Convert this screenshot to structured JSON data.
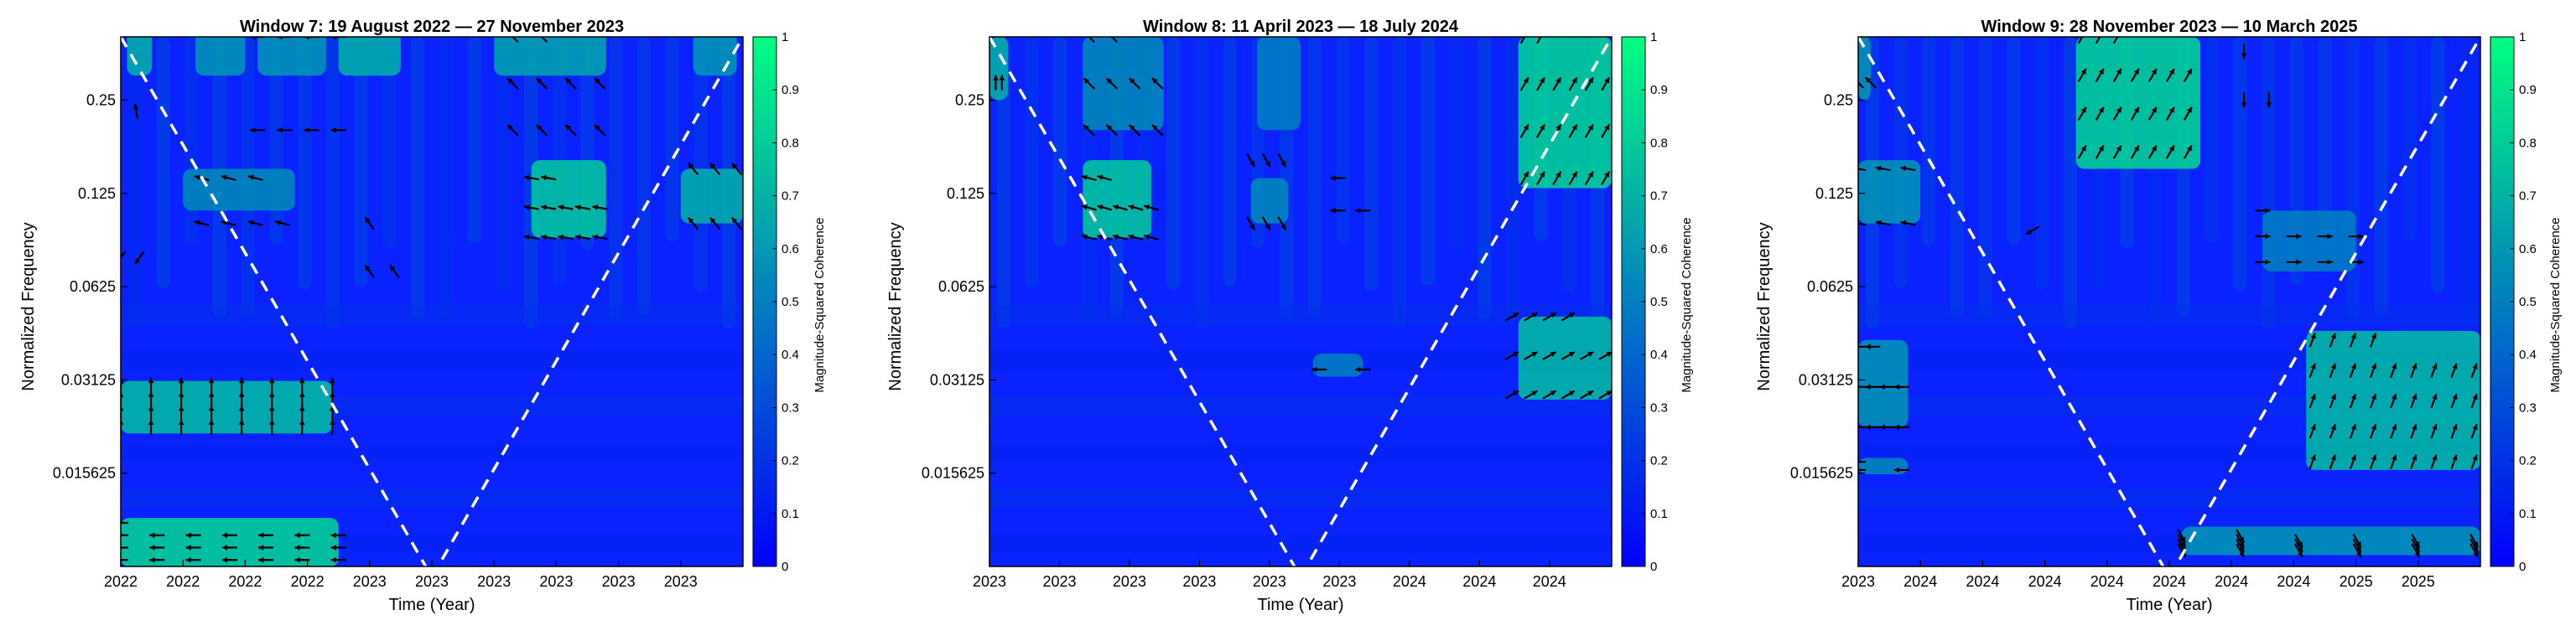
{
  "chart_data": [
    {
      "type": "heatmap",
      "title": "Window 7: 19 August 2022 — 27 November 2023",
      "xlabel": "Time (Year)",
      "ylabel": "Normalized Frequency",
      "colorbar_label": "Magnitude-Squared Coherence",
      "colorbar_ticks": [
        "0",
        "0.1",
        "0.2",
        "0.3",
        "0.4",
        "0.5",
        "0.6",
        "0.7",
        "0.8",
        "0.9",
        "1"
      ],
      "colorbar_range": [
        0,
        1
      ],
      "x_ticks": [
        "2022",
        "2022",
        "2022",
        "2022",
        "2023",
        "2023",
        "2023",
        "2023",
        "2023",
        "2023"
      ],
      "y_scale": "log2",
      "y_ticks": [
        "0.25",
        "0.125",
        "0.0625",
        "0.03125",
        "0.015625"
      ],
      "y_tick_values": [
        0.25,
        0.125,
        0.0625,
        0.03125,
        0.015625
      ],
      "y_range": [
        0.0078125,
        0.4
      ],
      "colormap": {
        "low": "#0000ff",
        "high": "#00ff80"
      },
      "cone_of_influence": {
        "color": "#ffffff",
        "style": "dashed",
        "min_time_fraction": 0.5
      },
      "high_coherence_regions": [
        {
          "t": [
            0.01,
            0.05
          ],
          "f": [
            0.3,
            0.42
          ],
          "value": 0.7
        },
        {
          "t": [
            0.12,
            0.2
          ],
          "f": [
            0.3,
            0.42
          ],
          "value": 0.6
        },
        {
          "t": [
            0.22,
            0.33
          ],
          "f": [
            0.3,
            0.42
          ],
          "value": 0.6
        },
        {
          "t": [
            0.35,
            0.45
          ],
          "f": [
            0.3,
            0.42
          ],
          "value": 0.7
        },
        {
          "t": [
            0.6,
            0.78
          ],
          "f": [
            0.3,
            0.42
          ],
          "value": 0.65
        },
        {
          "t": [
            0.92,
            0.99
          ],
          "f": [
            0.3,
            0.42
          ],
          "value": 0.6
        },
        {
          "t": [
            0.1,
            0.28
          ],
          "f": [
            0.11,
            0.15
          ],
          "value": 0.55
        },
        {
          "t": [
            0.66,
            0.78
          ],
          "f": [
            0.09,
            0.16
          ],
          "value": 0.8
        },
        {
          "t": [
            0.9,
            1.0
          ],
          "f": [
            0.1,
            0.15
          ],
          "value": 0.7
        },
        {
          "t": [
            0.0,
            0.34
          ],
          "f": [
            0.021,
            0.031
          ],
          "value": 0.75
        },
        {
          "t": [
            0.0,
            0.35
          ],
          "f": [
            0.0078,
            0.0112
          ],
          "value": 0.85
        }
      ],
      "arrow_groups": [
        {
          "t": [
            0.02,
            0.03
          ],
          "f": [
            0.22,
            0.24
          ],
          "count": 1,
          "angle_deg": 100
        },
        {
          "t": [
            0.22,
            0.35
          ],
          "f": [
            0.2,
            0.4
          ],
          "count": 8,
          "angle_deg": 180
        },
        {
          "t": [
            0.63,
            0.77
          ],
          "f": [
            0.2,
            0.4
          ],
          "count": 10,
          "angle_deg": 135
        },
        {
          "t": [
            0.13,
            0.26
          ],
          "f": [
            0.1,
            0.14
          ],
          "count": 7,
          "angle_deg": 165
        },
        {
          "t": [
            0.66,
            0.77
          ],
          "f": [
            0.09,
            0.14
          ],
          "count": 12,
          "angle_deg": 170
        },
        {
          "t": [
            0.92,
            0.99
          ],
          "f": [
            0.1,
            0.15
          ],
          "count": 6,
          "angle_deg": 130
        },
        {
          "t": [
            0.4,
            0.44
          ],
          "f": [
            0.07,
            0.1
          ],
          "count": 3,
          "angle_deg": 125
        },
        {
          "t": [
            0.0,
            0.03
          ],
          "f": [
            0.075,
            0.08
          ],
          "count": 2,
          "angle_deg": 235
        },
        {
          "t": [
            0.0,
            0.34
          ],
          "f": [
            0.022,
            0.03
          ],
          "count": 32,
          "angle_deg": 90
        },
        {
          "t": [
            0.0,
            0.35
          ],
          "f": [
            0.0082,
            0.0108
          ],
          "count": 22,
          "angle_deg": 180
        }
      ]
    },
    {
      "type": "heatmap",
      "title": "Window 8: 11 April 2023 — 18 July 2024",
      "xlabel": "Time (Year)",
      "ylabel": "Normalized Frequency",
      "colorbar_label": "Magnitude-Squared Coherence",
      "colorbar_ticks": [
        "0",
        "0.1",
        "0.2",
        "0.3",
        "0.4",
        "0.5",
        "0.6",
        "0.7",
        "0.8",
        "0.9",
        "1"
      ],
      "colorbar_range": [
        0,
        1
      ],
      "x_ticks": [
        "2023",
        "2023",
        "2023",
        "2023",
        "2023",
        "2023",
        "2024",
        "2024",
        "2024"
      ],
      "y_scale": "log2",
      "y_ticks": [
        "0.25",
        "0.125",
        "0.0625",
        "0.03125",
        "0.015625"
      ],
      "y_tick_values": [
        0.25,
        0.125,
        0.0625,
        0.03125,
        0.015625
      ],
      "y_range": [
        0.0078125,
        0.4
      ],
      "colormap": {
        "low": "#0000ff",
        "high": "#00ff80"
      },
      "cone_of_influence": {
        "color": "#ffffff",
        "style": "dashed",
        "min_time_fraction": 0.5
      },
      "high_coherence_regions": [
        {
          "t": [
            0.0,
            0.03
          ],
          "f": [
            0.25,
            0.4
          ],
          "value": 0.7
        },
        {
          "t": [
            0.15,
            0.28
          ],
          "f": [
            0.2,
            0.4
          ],
          "value": 0.55
        },
        {
          "t": [
            0.15,
            0.26
          ],
          "f": [
            0.09,
            0.16
          ],
          "value": 0.8
        },
        {
          "t": [
            0.43,
            0.5
          ],
          "f": [
            0.2,
            0.4
          ],
          "value": 0.5
        },
        {
          "t": [
            0.42,
            0.48
          ],
          "f": [
            0.1,
            0.14
          ],
          "value": 0.55
        },
        {
          "t": [
            0.85,
            1.0
          ],
          "f": [
            0.13,
            0.4
          ],
          "value": 0.85
        },
        {
          "t": [
            0.85,
            1.0
          ],
          "f": [
            0.027,
            0.05
          ],
          "value": 0.75
        },
        {
          "t": [
            0.52,
            0.6
          ],
          "f": [
            0.032,
            0.038
          ],
          "value": 0.5
        }
      ],
      "arrow_groups": [
        {
          "t": [
            0.01,
            0.02
          ],
          "f": [
            0.27,
            0.3
          ],
          "count": 2,
          "angle_deg": 90
        },
        {
          "t": [
            0.16,
            0.27
          ],
          "f": [
            0.2,
            0.4
          ],
          "count": 10,
          "angle_deg": 135
        },
        {
          "t": [
            0.16,
            0.26
          ],
          "f": [
            0.09,
            0.14
          ],
          "count": 12,
          "angle_deg": 165
        },
        {
          "t": [
            0.42,
            0.47
          ],
          "f": [
            0.1,
            0.16
          ],
          "count": 6,
          "angle_deg": 300
        },
        {
          "t": [
            0.56,
            0.6
          ],
          "f": [
            0.11,
            0.14
          ],
          "count": 3,
          "angle_deg": 180
        },
        {
          "t": [
            0.86,
            0.99
          ],
          "f": [
            0.14,
            0.4
          ],
          "count": 20,
          "angle_deg": 60
        },
        {
          "t": [
            0.53,
            0.6
          ],
          "f": [
            0.03,
            0.038
          ],
          "count": 2,
          "angle_deg": 180
        },
        {
          "t": [
            0.84,
            0.99
          ],
          "f": [
            0.028,
            0.05
          ],
          "count": 16,
          "angle_deg": 30
        }
      ]
    },
    {
      "type": "heatmap",
      "title": "Window 9: 28 November 2023 — 10 March 2025",
      "xlabel": "Time (Year)",
      "ylabel": "Normalized Frequency",
      "colorbar_label": "Magnitude-Squared Coherence",
      "colorbar_ticks": [
        "0",
        "0.1",
        "0.2",
        "0.3",
        "0.4",
        "0.5",
        "0.6",
        "0.7",
        "0.8",
        "0.9",
        "1"
      ],
      "colorbar_range": [
        0,
        1
      ],
      "x_ticks": [
        "2023",
        "2024",
        "2024",
        "2024",
        "2024",
        "2024",
        "2024",
        "2024",
        "2025",
        "2025"
      ],
      "y_scale": "log2",
      "y_ticks": [
        "0.25",
        "0.125",
        "0.0625",
        "0.03125",
        "0.015625"
      ],
      "y_tick_values": [
        0.25,
        0.125,
        0.0625,
        0.03125,
        0.015625
      ],
      "y_range": [
        0.0078125,
        0.4
      ],
      "colormap": {
        "low": "#0000ff",
        "high": "#00ff80"
      },
      "cone_of_influence": {
        "color": "#ffffff",
        "style": "dashed",
        "min_time_fraction": 0.5
      },
      "high_coherence_regions": [
        {
          "t": [
            0.0,
            0.02
          ],
          "f": [
            0.25,
            0.4
          ],
          "value": 0.6
        },
        {
          "t": [
            0.35,
            0.55
          ],
          "f": [
            0.15,
            0.4
          ],
          "value": 0.85
        },
        {
          "t": [
            0.0,
            0.1
          ],
          "f": [
            0.1,
            0.16
          ],
          "value": 0.6
        },
        {
          "t": [
            0.65,
            0.8
          ],
          "f": [
            0.07,
            0.11
          ],
          "value": 0.5
        },
        {
          "t": [
            0.0,
            0.08
          ],
          "f": [
            0.022,
            0.042
          ],
          "value": 0.6
        },
        {
          "t": [
            0.72,
            1.0
          ],
          "f": [
            0.016,
            0.045
          ],
          "value": 0.75
        },
        {
          "t": [
            0.0,
            0.08
          ],
          "f": [
            0.0155,
            0.0175
          ],
          "value": 0.55
        },
        {
          "t": [
            0.52,
            1.0
          ],
          "f": [
            0.0085,
            0.0105
          ],
          "value": 0.6
        }
      ],
      "arrow_groups": [
        {
          "t": [
            0.0,
            0.02
          ],
          "f": [
            0.27,
            0.3
          ],
          "count": 2,
          "angle_deg": 135
        },
        {
          "t": [
            0.36,
            0.53
          ],
          "f": [
            0.17,
            0.4
          ],
          "count": 24,
          "angle_deg": 60
        },
        {
          "t": [
            0.62,
            0.66
          ],
          "f": [
            0.25,
            0.36
          ],
          "count": 3,
          "angle_deg": 270
        },
        {
          "t": [
            0.0,
            0.08
          ],
          "f": [
            0.1,
            0.15
          ],
          "count": 6,
          "angle_deg": 170
        },
        {
          "t": [
            0.26,
            0.3
          ],
          "f": [
            0.09,
            0.1
          ],
          "count": 1,
          "angle_deg": 210
        },
        {
          "t": [
            0.65,
            0.8
          ],
          "f": [
            0.075,
            0.11
          ],
          "count": 9,
          "angle_deg": 0
        },
        {
          "t": [
            0.0,
            0.07
          ],
          "f": [
            0.022,
            0.04
          ],
          "count": 10,
          "angle_deg": 180
        },
        {
          "t": [
            0.73,
            0.99
          ],
          "f": [
            0.017,
            0.042
          ],
          "count": 40,
          "angle_deg": 70
        },
        {
          "t": [
            0.0,
            0.07
          ],
          "f": [
            0.016,
            0.017
          ],
          "count": 3,
          "angle_deg": 180
        },
        {
          "t": [
            0.52,
            0.99
          ],
          "f": [
            0.0088,
            0.0098
          ],
          "count": 20,
          "angle_deg": 300
        }
      ]
    }
  ]
}
